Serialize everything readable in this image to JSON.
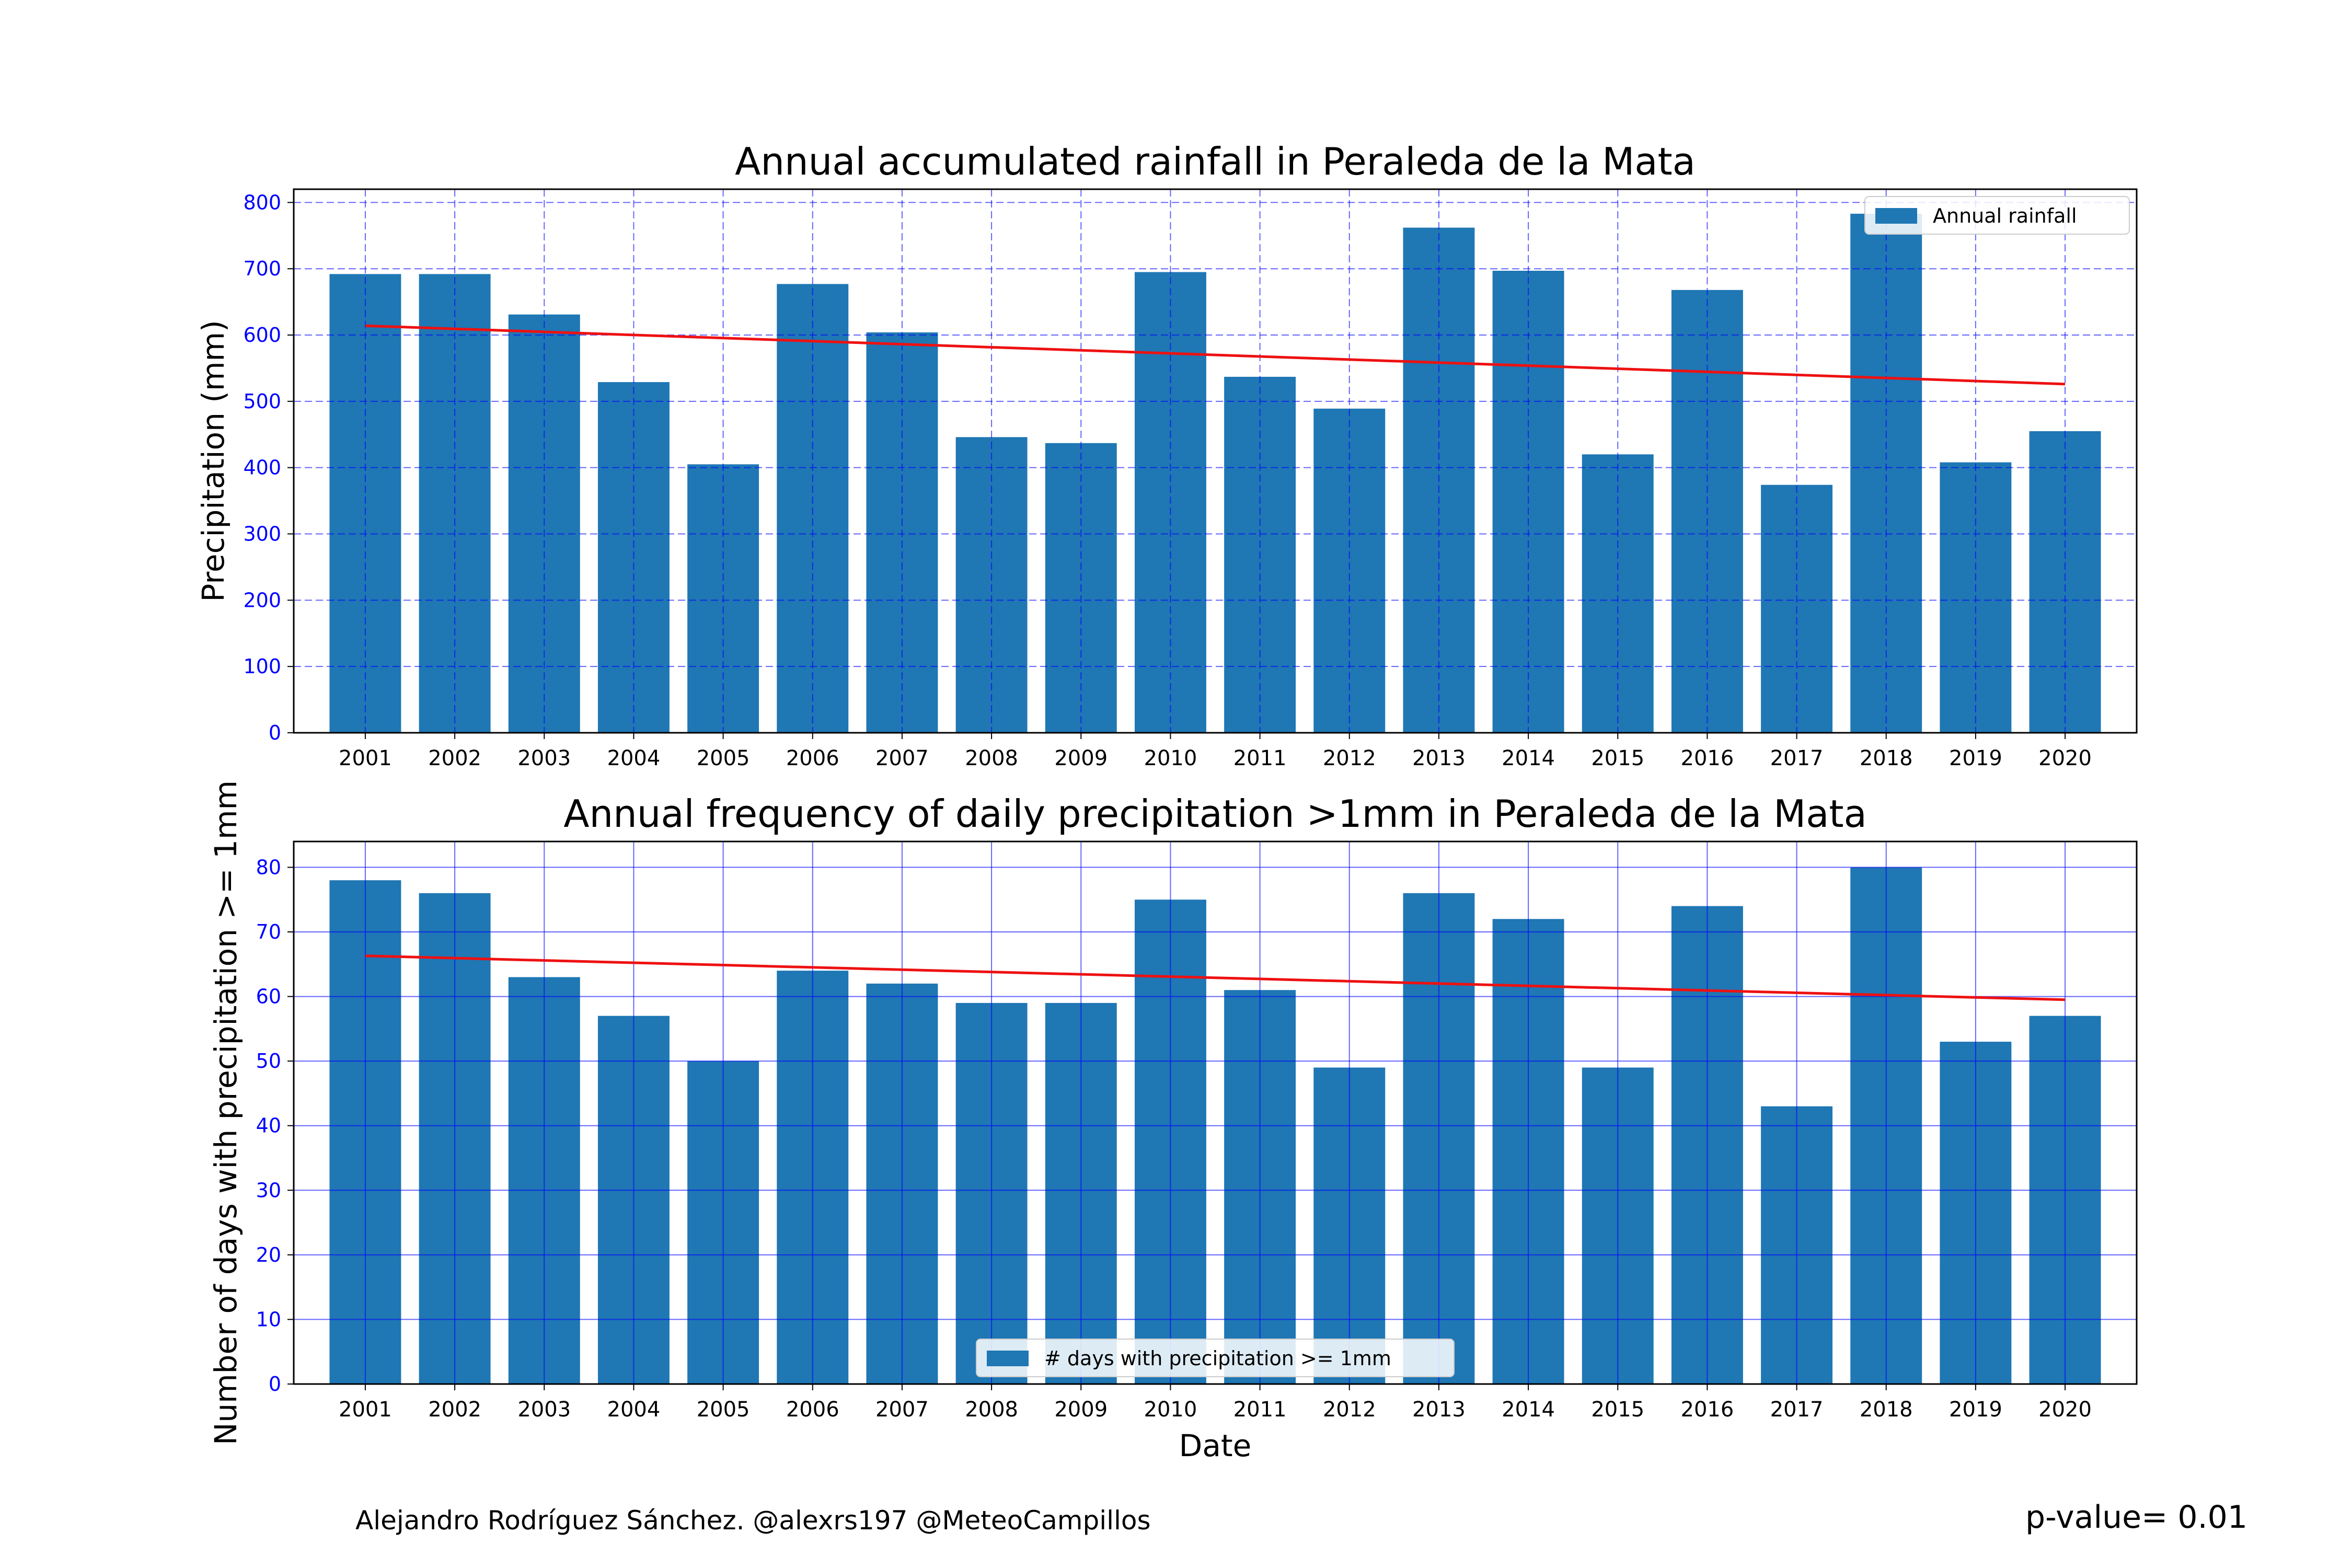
{
  "chart_data": [
    {
      "type": "bar",
      "title": "Annual accumulated rainfall in Peraleda de la Mata",
      "xlabel": "",
      "ylabel": "Precipitation (mm)",
      "ylim": [
        0,
        820
      ],
      "yticks": [
        0,
        100,
        200,
        300,
        400,
        500,
        600,
        700,
        800
      ],
      "grid": "dashed",
      "legend_position": "top-right",
      "bar_color": "#1f77b4",
      "trend_color": "#ee1111",
      "grid_color": "#0000ff",
      "categories": [
        "2001",
        "2002",
        "2003",
        "2004",
        "2005",
        "2006",
        "2007",
        "2008",
        "2009",
        "2010",
        "2011",
        "2012",
        "2013",
        "2014",
        "2015",
        "2016",
        "2017",
        "2018",
        "2019",
        "2020"
      ],
      "series": [
        {
          "name": "Annual rainfall",
          "values": [
            692,
            692,
            631,
            529,
            405,
            677,
            604,
            446,
            437,
            695,
            537,
            489,
            762,
            697,
            420,
            668,
            374,
            783,
            408,
            455
          ]
        }
      ],
      "trend": {
        "start": 614,
        "end": 526
      }
    },
    {
      "type": "bar",
      "title": "Annual frequency of daily precipitation >1mm in Peraleda de la Mata",
      "xlabel": "Date",
      "ylabel": "Number of days with precipitation >= 1mm",
      "ylim": [
        0,
        84
      ],
      "yticks": [
        0,
        10,
        20,
        30,
        40,
        50,
        60,
        70,
        80
      ],
      "grid": "solid",
      "legend_position": "bottom-center",
      "bar_color": "#1f77b4",
      "trend_color": "#ee1111",
      "grid_color": "#0000ff",
      "categories": [
        "2001",
        "2002",
        "2003",
        "2004",
        "2005",
        "2006",
        "2007",
        "2008",
        "2009",
        "2010",
        "2011",
        "2012",
        "2013",
        "2014",
        "2015",
        "2016",
        "2017",
        "2018",
        "2019",
        "2020"
      ],
      "series": [
        {
          "name": "# days with precipitation >= 1mm",
          "values": [
            78,
            76,
            63,
            57,
            50,
            64,
            62,
            59,
            59,
            75,
            61,
            49,
            76,
            72,
            49,
            74,
            43,
            80,
            53,
            57
          ]
        }
      ],
      "trend": {
        "start": 66.3,
        "end": 59.5
      }
    }
  ],
  "footer": {
    "credit": "Alejandro Rodríguez Sánchez. @alexrs197 @MeteoCampillos",
    "pvalue": "p-value= 0.01"
  }
}
